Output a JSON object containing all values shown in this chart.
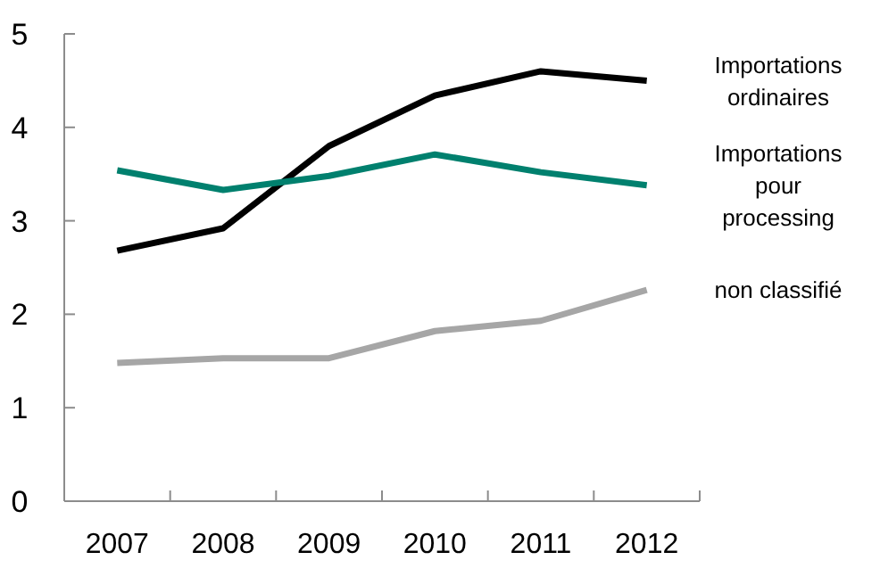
{
  "chart_data": {
    "type": "line",
    "categories": [
      "2007",
      "2008",
      "2009",
      "2010",
      "2011",
      "2012"
    ],
    "series": [
      {
        "name": "Importations ordinaires",
        "color": "#000000",
        "values": [
          2.68,
          2.92,
          3.8,
          4.34,
          4.6,
          4.5
        ]
      },
      {
        "name": "Importations pour processing",
        "color": "#00806e",
        "values": [
          3.54,
          3.33,
          3.48,
          3.71,
          3.52,
          3.38
        ]
      },
      {
        "name": "non classifié",
        "color": "#a6a6a6",
        "values": [
          1.48,
          1.53,
          1.53,
          1.82,
          1.93,
          2.26
        ]
      }
    ],
    "ylim": [
      0,
      5
    ],
    "yticks": [
      0,
      1,
      2,
      3,
      4,
      5
    ],
    "grid": false,
    "legend": false,
    "marker": "none",
    "line_style": "solid"
  }
}
